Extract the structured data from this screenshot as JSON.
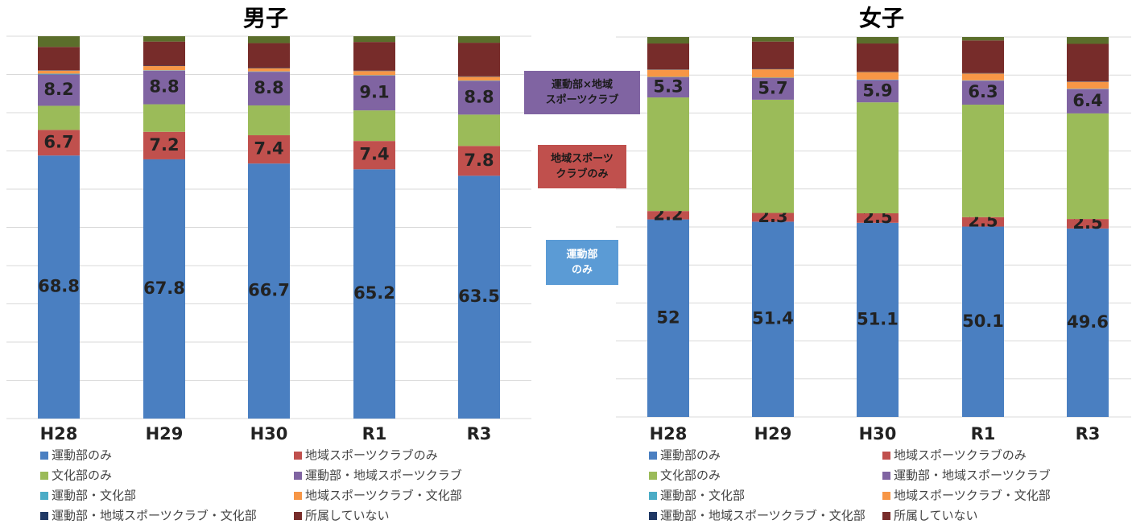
{
  "chart_data": [
    {
      "type": "stacked_bar",
      "title": "男子",
      "categories": [
        "H28",
        "H29",
        "H30",
        "R1",
        "R3"
      ],
      "ylim": [
        0,
        100
      ],
      "yticks": [
        0,
        10,
        20,
        30,
        40,
        50,
        60,
        70,
        80,
        90,
        100
      ],
      "grid": true,
      "series": [
        {
          "name": "運動部のみ",
          "color": "#4a7fc1",
          "values": [
            68.8,
            67.8,
            66.7,
            65.2,
            63.5
          ],
          "show_labels": true
        },
        {
          "name": "地域スポーツクラブのみ",
          "color": "#c0504d",
          "values": [
            6.7,
            7.2,
            7.4,
            7.4,
            7.8
          ],
          "show_labels": true
        },
        {
          "name": "文化部のみ",
          "color": "#9bbb59",
          "values": [
            6.3,
            7.2,
            7.8,
            8.0,
            8.2
          ]
        },
        {
          "name": "運動部・地域スポーツクラブ",
          "color": "#8064a2",
          "values": [
            8.2,
            8.8,
            8.8,
            9.1,
            8.8
          ],
          "show_labels": true
        },
        {
          "name": "運動部・文化部",
          "color": "#4bacc6",
          "values": [
            0.2,
            0.1,
            0.1,
            0.1,
            0.1
          ]
        },
        {
          "name": "地域スポーツクラブ・文化部",
          "color": "#f79646",
          "values": [
            0.8,
            1.1,
            0.8,
            1.1,
            1.0
          ]
        },
        {
          "name": "運動部・地域スポーツクラブ・文化部",
          "color": "#1f3864",
          "values": [
            0.1,
            0.1,
            0.1,
            0.1,
            0.1
          ]
        },
        {
          "name": "所属していない",
          "color": "#772c2a",
          "values": [
            6.1,
            6.3,
            6.5,
            7.5,
            8.8
          ]
        },
        {
          "color": "#5b6e2b",
          "values": [
            2.8,
            1.4,
            1.8,
            1.5,
            1.7
          ]
        }
      ]
    },
    {
      "type": "stacked_bar",
      "title": "女子",
      "categories": [
        "H28",
        "H29",
        "H30",
        "R1",
        "R3"
      ],
      "ylim": [
        0,
        100
      ],
      "yticks": [
        0,
        10,
        20,
        30,
        40,
        50,
        60,
        70,
        80,
        90,
        100
      ],
      "grid": true,
      "series": [
        {
          "name": "運動部のみ",
          "color": "#4a7fc1",
          "values": [
            52,
            51.4,
            51.1,
            50.1,
            49.6
          ],
          "show_labels": true
        },
        {
          "name": "地域スポーツクラブのみ",
          "color": "#c0504d",
          "values": [
            2.2,
            2.3,
            2.5,
            2.5,
            2.5
          ],
          "show_labels": true
        },
        {
          "name": "文化部のみ",
          "color": "#9bbb59",
          "values": [
            29.9,
            29.8,
            29.2,
            29.6,
            27.8
          ]
        },
        {
          "name": "運動部・地域スポーツクラブ",
          "color": "#8064a2",
          "values": [
            5.3,
            5.7,
            5.9,
            6.3,
            6.4
          ],
          "show_labels": true
        },
        {
          "name": "運動部・文化部",
          "color": "#4bacc6",
          "values": [
            0.1,
            0.1,
            0.1,
            0.1,
            0.1
          ]
        },
        {
          "name": "地域スポーツクラブ・文化部",
          "color": "#f79646",
          "values": [
            1.9,
            2.2,
            2.0,
            1.8,
            1.8
          ]
        },
        {
          "name": "運動部・地域スポーツクラブ・文化部",
          "color": "#1f3864",
          "values": [
            0.1,
            0.1,
            0.1,
            0.1,
            0.1
          ]
        },
        {
          "name": "所属していない",
          "color": "#772c2a",
          "values": [
            6.8,
            7.2,
            7.4,
            8.6,
            9.9
          ]
        },
        {
          "color": "#5b6e2b",
          "values": [
            1.7,
            1.2,
            1.7,
            0.9,
            1.8
          ]
        }
      ]
    }
  ],
  "annotations": [
    {
      "lines": [
        "運動部×地域",
        "スポーツクラブ"
      ],
      "color": "#8064a2"
    },
    {
      "lines": [
        "地域スポーツ",
        "クラブのみ"
      ],
      "color": "#c0504d"
    },
    {
      "lines": [
        "運動部",
        "のみ"
      ],
      "color": "#5b9bd5"
    }
  ]
}
